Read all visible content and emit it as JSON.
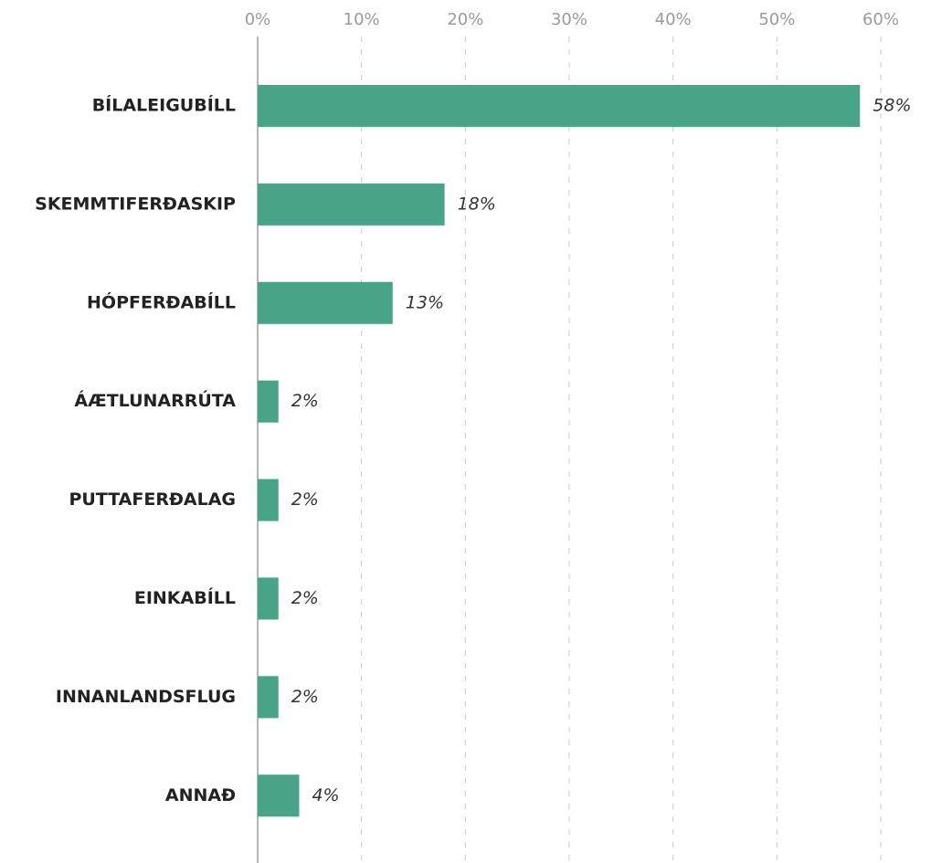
{
  "chart_data": {
    "type": "bar",
    "orientation": "horizontal",
    "categories": [
      "BÍLALEIGUBÍLL",
      "SKEMMTIFERÐASKIP",
      "HÓPFERÐABÍLL",
      "ÁÆTLUNARRÚTA",
      "PUTTAFERÐALAG",
      "EINKABÍLL",
      "INNANLANDSFLUG",
      "ANNAÐ"
    ],
    "values": [
      58,
      18,
      13,
      2,
      2,
      2,
      2,
      4
    ],
    "value_labels": [
      "58%",
      "18%",
      "13%",
      "2%",
      "2%",
      "2%",
      "2%",
      "4%"
    ],
    "color": "#48a388",
    "xlim": [
      0,
      60
    ],
    "xticks": [
      {
        "value": 0,
        "label": "0%"
      },
      {
        "value": 10,
        "label": "10%"
      },
      {
        "value": 20,
        "label": "20%"
      },
      {
        "value": 30,
        "label": "30%"
      },
      {
        "value": 40,
        "label": "40%"
      },
      {
        "value": 50,
        "label": "50%"
      },
      {
        "value": 60,
        "label": "60%"
      }
    ],
    "grid": true
  }
}
